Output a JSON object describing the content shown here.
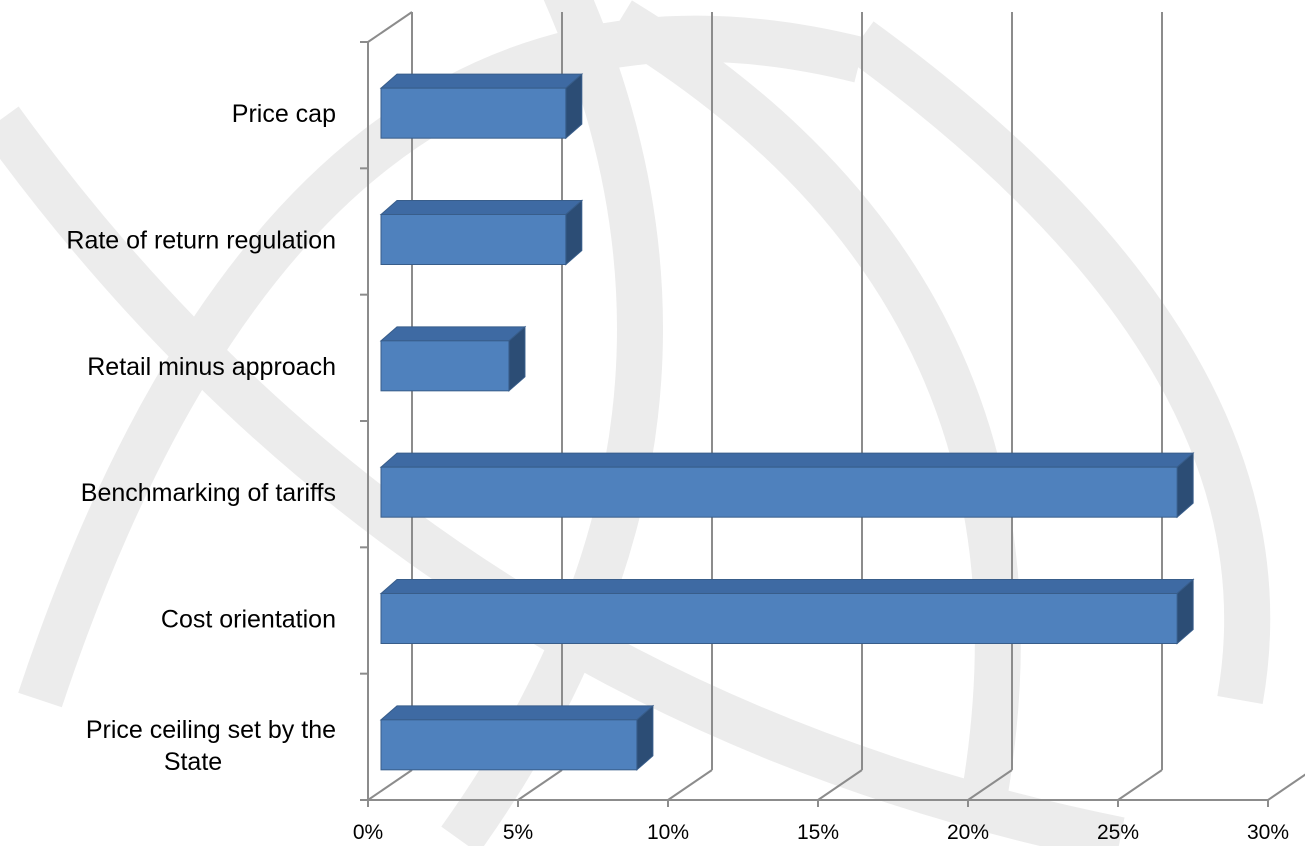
{
  "chart_data": {
    "type": "bar",
    "orientation": "horizontal",
    "style": "3d",
    "categories": [
      "Price cap",
      "Rate of return regulation",
      "Retail minus approach",
      "Benchmarking of tariffs",
      "Cost orientation",
      "Price ceiling set by the State"
    ],
    "category_label_lines": [
      [
        "Price cap"
      ],
      [
        "Rate of return regulation"
      ],
      [
        "Retail minus approach"
      ],
      [
        "Benchmarking of tariffs"
      ],
      [
        "Cost orientation"
      ],
      [
        "Price ceiling set by the",
        "State"
      ]
    ],
    "values": [
      6.5,
      6.5,
      4.5,
      28,
      28,
      9
    ],
    "unit": "%",
    "xlim": [
      0,
      30
    ],
    "xticks": [
      0,
      5,
      10,
      15,
      20,
      25,
      30
    ],
    "xtick_labels": [
      "0%",
      "5%",
      "10%",
      "15%",
      "20%",
      "25%",
      "30%"
    ],
    "title": "",
    "xlabel": "",
    "ylabel": "",
    "grid": "vertical",
    "legend": "none",
    "colors": {
      "bar_front": "#4f81bd",
      "bar_top": "#3e6aa3",
      "bar_side": "#2c4d75",
      "bar_edge": "#385d8a",
      "grid": "#8c8c8c",
      "watermark": "#ececec"
    }
  }
}
